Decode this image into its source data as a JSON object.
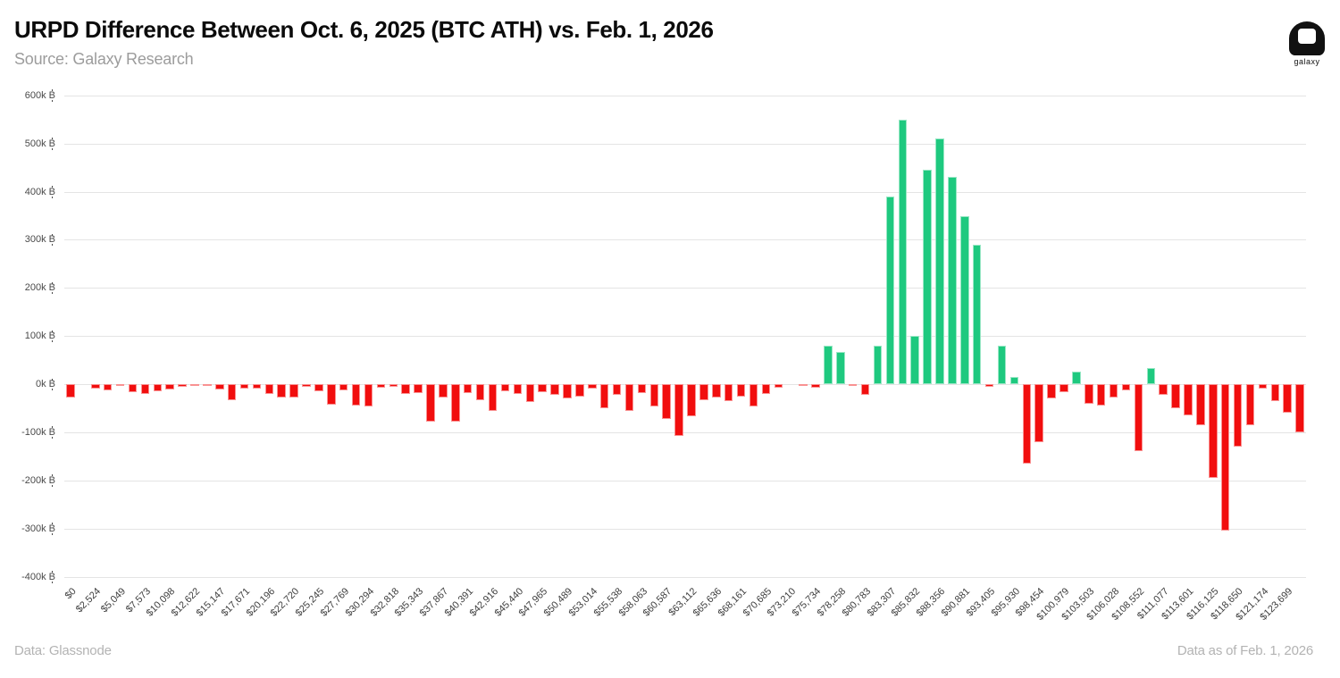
{
  "header": {
    "title": "URPD Difference Between Oct. 6, 2025 (BTC ATH) vs. Feb. 1, 2026",
    "source": "Source: Galaxy Research",
    "logo_text": "galaxy"
  },
  "footer": {
    "left": "Data: Glassnode",
    "right": "Data as of Feb. 1, 2026"
  },
  "colors": {
    "positive": "#1ec97f",
    "negative": "#f10e0e",
    "grid": "#e4e4e4",
    "axis_text": "#4a4a4a",
    "subtitle_text": "#9c9c9c"
  },
  "chart_data": {
    "type": "bar",
    "title": "URPD Difference Between Oct. 6, 2025 (BTC ATH) vs. Feb. 1, 2026",
    "subtitle": "Source: Galaxy Research",
    "unit": "k ₿",
    "ylabel": "",
    "xlabel": "",
    "ylim_k": [
      -400,
      600
    ],
    "grid": "horizontal",
    "legend": "none",
    "y_ticks": [
      "600k ₿",
      "500k ₿",
      "400k ₿",
      "300k ₿",
      "200k ₿",
      "100k ₿",
      "0k ₿",
      "-100k ₿",
      "-200k ₿",
      "-300k ₿",
      "-400k ₿"
    ],
    "y_tick_values_k": [
      600,
      500,
      400,
      300,
      200,
      100,
      0,
      -100,
      -200,
      -300,
      -400
    ],
    "x_tick_labels": [
      "$0",
      "$2,524",
      "$5,049",
      "$7,573",
      "$10,098",
      "$12,622",
      "$15,147",
      "$17,671",
      "$20,196",
      "$22,720",
      "$25,245",
      "$27,769",
      "$30,294",
      "$32,818",
      "$35,343",
      "$37,867",
      "$40,391",
      "$42,916",
      "$45,440",
      "$47,965",
      "$50,489",
      "$53,014",
      "$55,538",
      "$58,063",
      "$60,587",
      "$63,112",
      "$65,636",
      "$68,161",
      "$70,685",
      "$73,210",
      "$75,734",
      "$78,258",
      "$80,783",
      "$83,307",
      "$85,832",
      "$88,356",
      "$90,881",
      "$93,405",
      "$95,930",
      "$98,454",
      "$100,979",
      "$103,503",
      "$106,028",
      "$108,552",
      "$111,077",
      "$113,601",
      "$116,125",
      "$118,650",
      "$121,174",
      "$123,699"
    ],
    "x_labels_every_n_bars": 2,
    "values_k": [
      -28,
      0,
      -9,
      -12,
      -4,
      -17,
      -21,
      -14,
      -11,
      -6,
      -4,
      -3,
      -11,
      -34,
      -9,
      -10,
      -20,
      -27,
      -28,
      -5,
      -15,
      -43,
      -12,
      -45,
      -46,
      -8,
      -5,
      -20,
      -19,
      -78,
      -28,
      -77,
      -19,
      -34,
      -56,
      -14,
      -20,
      -37,
      -17,
      -22,
      -29,
      -25,
      -9,
      -50,
      -22,
      -56,
      -19,
      -46,
      -72,
      -108,
      -66,
      -33,
      -28,
      -35,
      -25,
      -46,
      -20,
      -8,
      0,
      -4,
      -7,
      80,
      67,
      -2,
      -22,
      80,
      390,
      550,
      100,
      445,
      510,
      430,
      350,
      290,
      -6,
      80,
      15,
      -165,
      -120,
      -30,
      -17,
      27,
      -40,
      -45,
      -27,
      -12,
      -140,
      34,
      -22,
      -50,
      -65,
      -85,
      -195,
      -305,
      -130,
      -85,
      -10,
      -35,
      -60,
      -100
    ]
  }
}
